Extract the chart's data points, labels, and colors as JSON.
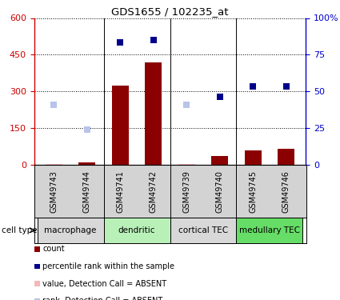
{
  "title": "GDS1655 / 102235_at",
  "samples": [
    "GSM49743",
    "GSM49744",
    "GSM49741",
    "GSM49742",
    "GSM49739",
    "GSM49740",
    "GSM49745",
    "GSM49746"
  ],
  "count_values": [
    5,
    12,
    325,
    420,
    4,
    38,
    60,
    65
  ],
  "count_absent": [
    true,
    false,
    false,
    false,
    true,
    false,
    false,
    false
  ],
  "rank_values": [
    245,
    145,
    500,
    510,
    245,
    280,
    320,
    320
  ],
  "rank_absent": [
    true,
    true,
    false,
    false,
    true,
    false,
    false,
    false
  ],
  "left_ylim": [
    0,
    600
  ],
  "left_yticks": [
    0,
    150,
    300,
    450,
    600
  ],
  "right_yticks": [
    0,
    25,
    50,
    75,
    100
  ],
  "right_yticklabels": [
    "0",
    "25",
    "50",
    "75",
    "100%"
  ],
  "cell_type_groups": [
    {
      "label": "macrophage",
      "span": [
        0,
        1
      ],
      "color": "#d8d8d8"
    },
    {
      "label": "dendritic",
      "span": [
        2,
        3
      ],
      "color": "#b8f0b8"
    },
    {
      "label": "cortical TEC",
      "span": [
        4,
        5
      ],
      "color": "#d8d8d8"
    },
    {
      "label": "medullary TEC",
      "span": [
        6,
        7
      ],
      "color": "#66dd66"
    }
  ],
  "bar_color_present": "#8b0000",
  "bar_color_absent": "#f4b8b8",
  "rank_color_present": "#00008b",
  "rank_color_absent": "#b8c4e8",
  "bar_width": 0.5,
  "rank_markersize": 6,
  "left_axis_color": "#cc0000",
  "right_axis_color": "#0000cc",
  "sample_band_color": "#d3d3d3",
  "legend_items": [
    {
      "label": "count",
      "color": "#8b0000"
    },
    {
      "label": "percentile rank within the sample",
      "color": "#00008b"
    },
    {
      "label": "value, Detection Call = ABSENT",
      "color": "#f4b8b8"
    },
    {
      "label": "rank, Detection Call = ABSENT",
      "color": "#b8c4e8"
    }
  ]
}
